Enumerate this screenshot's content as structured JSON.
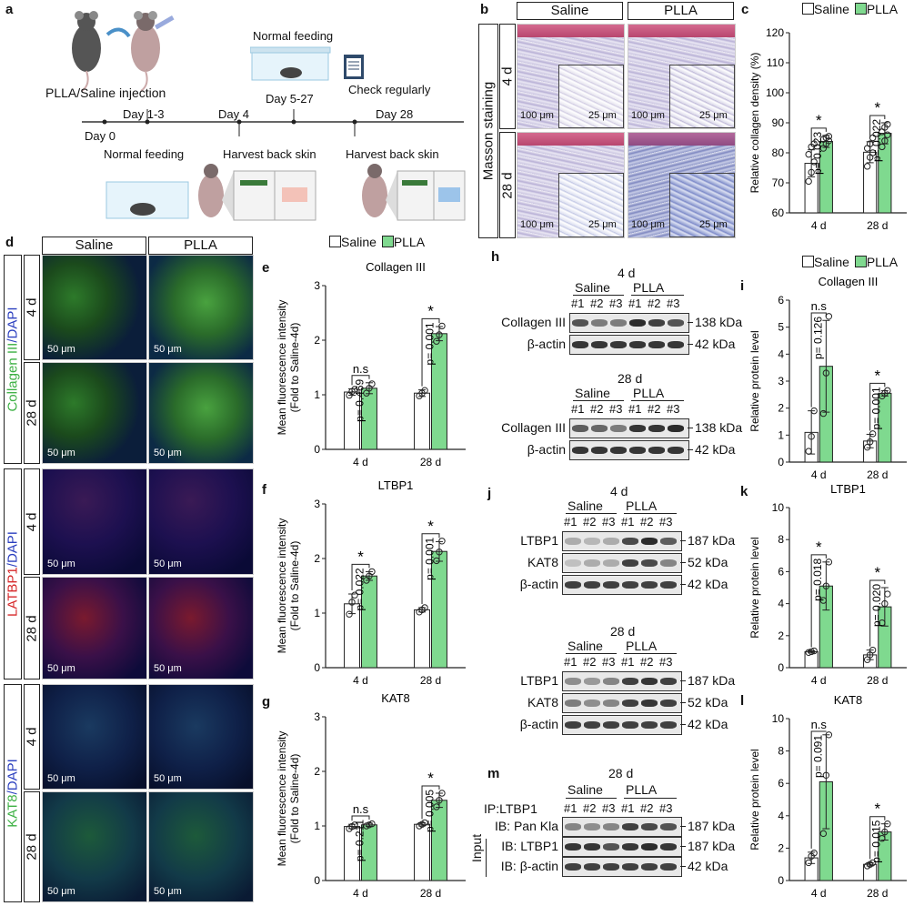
{
  "panel_letters": {
    "a": "a",
    "b": "b",
    "c": "c",
    "d": "d",
    "e": "e",
    "f": "f",
    "g": "g",
    "h": "h",
    "i": "i",
    "j": "j",
    "k": "k",
    "l": "l",
    "m": "m"
  },
  "timeline": {
    "injection": "PLLA/Saline injection",
    "normal_feeding_top": "Normal feeding",
    "day0": "Day 0",
    "day13": "Day 1-3",
    "day4": "Day 4",
    "day527": "Day 5-27",
    "check": "Check regularly",
    "day28": "Day 28",
    "normal_feeding_bottom": "Normal feeding",
    "harvest1": "Harvest back skin",
    "harvest2": "Harvest back skin"
  },
  "masson": {
    "saline": "Saline",
    "plla": "PLLA",
    "side": "Masson staining",
    "row1": "4 d",
    "row2": "28 d",
    "sb100": "100 μm",
    "sb25": "25 μm"
  },
  "fluor": {
    "saline": "Saline",
    "plla": "PLLA",
    "row4d": "4 d",
    "row28d": "28 d",
    "sb": "50 μm",
    "group1_a": "Collagen III",
    "group1_b": "/DAPI",
    "group2_a": "LATBP1",
    "group2_b": "/DAPI",
    "group3_a": "KAT8",
    "group3_b": "/DAPI"
  },
  "legend": {
    "saline": "Saline",
    "plla": "PLLA"
  },
  "colors": {
    "saline_fill": "#ffffff",
    "plla_fill": "#7fd98f",
    "bar_stroke": "#222222",
    "green_text": "#3cb043",
    "red_text": "#d62728",
    "blue_text": "#2b3fbf"
  },
  "blots": {
    "h": {
      "title1": "4 d",
      "title2": "28 d",
      "saline": "Saline",
      "plla": "PLLA",
      "lanes": [
        "#1",
        "#2",
        "#3",
        "#1",
        "#2",
        "#3"
      ],
      "row1": "Collagen III",
      "row2": "β-actin",
      "kda1": "138 kDa",
      "kda2": "42 kDa"
    },
    "j": {
      "title1": "4 d",
      "title2": "28 d",
      "saline": "Saline",
      "plla": "PLLA",
      "lanes": [
        "#1",
        "#2",
        "#3",
        "#1",
        "#2",
        "#3"
      ],
      "row1": "LTBP1",
      "row2": "KAT8",
      "row3": "β-actin",
      "kda1": "187 kDa",
      "kda2": "52 kDa",
      "kda3": "42 kDa"
    },
    "m": {
      "title": "28 d",
      "saline": "Saline",
      "plla": "PLLA",
      "ip": "IP:LTBP1",
      "lanes": [
        "#1",
        "#2",
        "#3",
        "#1",
        "#2",
        "#3"
      ],
      "row1": "IB: Pan Kla",
      "row2": "IB: LTBP1",
      "row3": "IB: β-actin",
      "input": "Input",
      "kda1": "187 kDa",
      "kda2": "187 kDa",
      "kda3": "42 kDa"
    }
  },
  "chart_data": [
    {
      "id": "c",
      "type": "bar",
      "title": "",
      "ylabel": "Relative collagen density (%)",
      "ylim": [
        60,
        120
      ],
      "yticks": [
        60,
        70,
        80,
        90,
        100,
        110,
        120
      ],
      "categories": [
        "4 d",
        "28 d"
      ],
      "series": [
        {
          "name": "Saline",
          "values": [
            76.5,
            80.2
          ],
          "err": [
            4.5,
            3.5
          ],
          "points": [
            [
              70.5,
              73.5,
              77,
              79.5,
              82,
              83
            ],
            [
              75.5,
              78.5,
              80,
              81.5,
              83,
              85
            ]
          ]
        },
        {
          "name": "PLLA",
          "values": [
            83.8,
            86.5
          ],
          "err": [
            2,
            3.5
          ],
          "points": [
            [
              81.5,
              83,
              84,
              84.5,
              85,
              85.5
            ],
            [
              82,
              84,
              86,
              87,
              88.5,
              89.5
            ]
          ]
        }
      ],
      "sig": [
        {
          "star": "*",
          "p": "p= 0.023"
        },
        {
          "star": "*",
          "p": "p= 0.022"
        }
      ]
    },
    {
      "id": "e",
      "type": "bar",
      "title": "Collagen III",
      "ylabel": "Mean fluorescence intensity",
      "ylabel2": "(Fold to Saline-4d)",
      "ylim": [
        0,
        3
      ],
      "yticks": [
        0,
        1,
        2,
        3
      ],
      "categories": [
        "4 d",
        "28 d"
      ],
      "series": [
        {
          "name": "Saline",
          "values": [
            1.05,
            1.03
          ],
          "err": [
            0.06,
            0.06
          ],
          "points": [
            [
              0.99,
              1.06,
              1.1
            ],
            [
              0.98,
              1.03,
              1.08
            ]
          ]
        },
        {
          "name": "PLLA",
          "values": [
            1.12,
            2.12
          ],
          "err": [
            0.1,
            0.13
          ],
          "points": [
            [
              1.03,
              1.12,
              1.2
            ],
            [
              1.98,
              2.1,
              2.26
            ]
          ]
        }
      ],
      "sig": [
        {
          "star": "n.s",
          "p": "p= 0.469"
        },
        {
          "star": "*",
          "p": "p= 0.001"
        }
      ]
    },
    {
      "id": "f",
      "type": "bar",
      "title": "LTBP1",
      "ylabel": "Mean fluorescence intensity",
      "ylabel2": "(Fold to Saline-4d)",
      "ylim": [
        0,
        3
      ],
      "yticks": [
        0,
        1,
        2,
        3
      ],
      "categories": [
        "4 d",
        "28 d"
      ],
      "series": [
        {
          "name": "Saline",
          "values": [
            1.17,
            1.06
          ],
          "err": [
            0.18,
            0.04
          ],
          "points": [
            [
              0.98,
              1.2,
              1.33
            ],
            [
              1.02,
              1.06,
              1.1
            ]
          ]
        },
        {
          "name": "PLLA",
          "values": [
            1.68,
            2.13
          ],
          "err": [
            0.08,
            0.18
          ],
          "points": [
            [
              1.6,
              1.68,
              1.76
            ],
            [
              1.96,
              2.12,
              2.32
            ]
          ]
        }
      ],
      "sig": [
        {
          "star": "*",
          "p": "p= 0.022"
        },
        {
          "star": "*",
          "p": "p= 0.001"
        }
      ]
    },
    {
      "id": "g",
      "type": "bar",
      "title": "KAT8",
      "ylabel": "Mean fluorescence intensity",
      "ylabel2": "(Fold to Saline-4d)",
      "ylim": [
        0,
        3
      ],
      "yticks": [
        0,
        1,
        2,
        3
      ],
      "categories": [
        "4 d",
        "28 d"
      ],
      "series": [
        {
          "name": "Saline",
          "values": [
            0.99,
            1.03
          ],
          "err": [
            0.04,
            0.03
          ],
          "points": [
            [
              0.95,
              0.99,
              1.02
            ],
            [
              1.0,
              1.03,
              1.06
            ]
          ]
        },
        {
          "name": "PLLA",
          "values": [
            1.02,
            1.47
          ],
          "err": [
            0.03,
            0.13
          ],
          "points": [
            [
              1.0,
              1.02,
              1.04
            ],
            [
              1.35,
              1.47,
              1.6
            ]
          ]
        }
      ],
      "sig": [
        {
          "star": "n.s",
          "p": "p= 0.211"
        },
        {
          "star": "*",
          "p": "p= 0.005"
        }
      ]
    },
    {
      "id": "i",
      "type": "bar",
      "title": "Collagen III",
      "ylabel": "Relative protein level",
      "ylim": [
        0,
        6
      ],
      "yticks": [
        0,
        1,
        2,
        3,
        4,
        5,
        6
      ],
      "categories": [
        "4 d",
        "28 d"
      ],
      "series": [
        {
          "name": "Saline",
          "values": [
            1.1,
            0.78
          ],
          "err": [
            0.8,
            0.25
          ],
          "points": [
            [
              0.4,
              0.95,
              1.9
            ],
            [
              0.55,
              0.75,
              1.05
            ]
          ]
        },
        {
          "name": "PLLA",
          "values": [
            3.55,
            2.55
          ],
          "err": [
            1.7,
            0.1
          ],
          "points": [
            [
              1.8,
              3.3,
              5.4
            ],
            [
              2.45,
              2.55,
              2.65
            ]
          ]
        }
      ],
      "sig": [
        {
          "star": "n.s",
          "p": "p= 0.126"
        },
        {
          "star": "*",
          "p": "p= 0.001"
        }
      ]
    },
    {
      "id": "k",
      "type": "bar",
      "title": "LTBP1",
      "ylabel": "Relative protein level",
      "ylim": [
        0,
        10
      ],
      "yticks": [
        0,
        2,
        4,
        6,
        8,
        10
      ],
      "categories": [
        "4 d",
        "28 d"
      ],
      "series": [
        {
          "name": "Saline",
          "values": [
            1.0,
            0.8
          ],
          "err": [
            0.05,
            0.3
          ],
          "points": [
            [
              0.95,
              1.0,
              1.05
            ],
            [
              0.5,
              0.8,
              1.1
            ]
          ]
        },
        {
          "name": "PLLA",
          "values": [
            5.1,
            3.8
          ],
          "err": [
            1.5,
            1.2
          ],
          "points": [
            [
              4.2,
              5.1,
              6.6
            ],
            [
              2.8,
              4.0,
              4.6
            ]
          ]
        }
      ],
      "sig": [
        {
          "star": "*",
          "p": "p= 0.018"
        },
        {
          "star": "*",
          "p": "p= 0.020"
        }
      ]
    },
    {
      "id": "l",
      "type": "bar",
      "title": "KAT8",
      "ylabel": "Relative protein level",
      "ylim": [
        0,
        10
      ],
      "yticks": [
        0,
        2,
        4,
        6,
        8,
        10
      ],
      "categories": [
        "4 d",
        "28 d"
      ],
      "series": [
        {
          "name": "Saline",
          "values": [
            1.4,
            1.0
          ],
          "err": [
            0.35,
            0.1
          ],
          "points": [
            [
              1.1,
              1.5,
              1.7
            ],
            [
              0.9,
              1.0,
              1.1
            ]
          ]
        },
        {
          "name": "PLLA",
          "values": [
            6.1,
            3.0
          ],
          "err": [
            2.9,
            0.5
          ],
          "points": [
            [
              2.9,
              6.5,
              9.0
            ],
            [
              2.6,
              3.0,
              3.5
            ]
          ]
        }
      ],
      "sig": [
        {
          "star": "n.s",
          "p": "p= 0.091"
        },
        {
          "star": "*",
          "p": "p= 0.015"
        }
      ]
    }
  ]
}
